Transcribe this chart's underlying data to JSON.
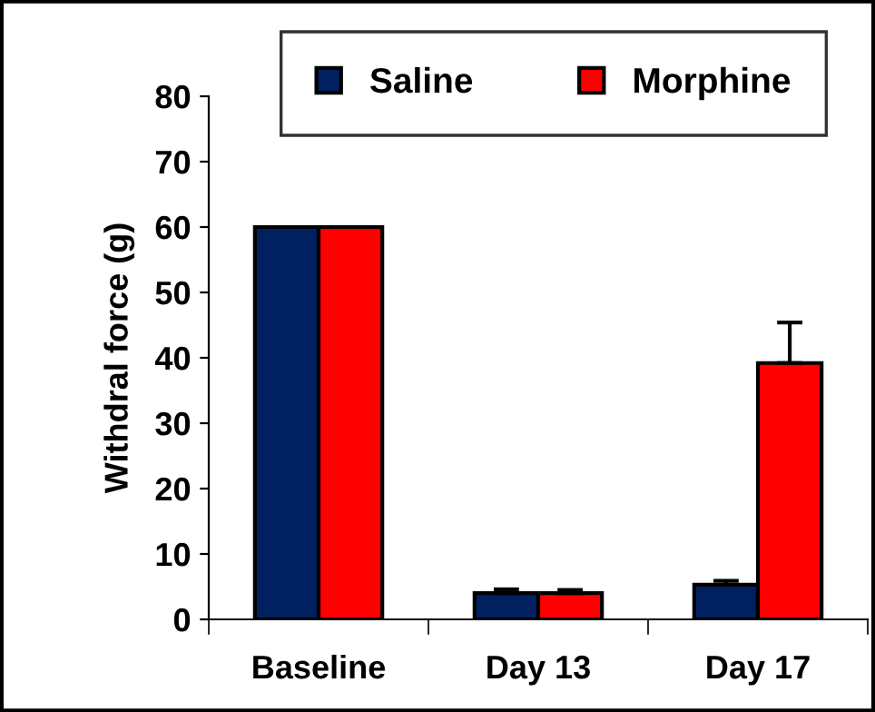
{
  "chart_data": {
    "type": "bar",
    "ylabel": "Withdral force (g)",
    "categories": [
      "Baseline",
      "Day 13",
      "Day 17"
    ],
    "ylim": [
      0,
      80
    ],
    "yticks": [
      0,
      10,
      20,
      30,
      40,
      50,
      60,
      70,
      80
    ],
    "grid": false,
    "legend": "top",
    "series": [
      {
        "name": "Saline",
        "color": "#002060",
        "values": [
          60,
          4,
          5.3
        ],
        "errors": [
          null,
          [
            4,
            4.6
          ],
          [
            5.3,
            5.9
          ]
        ]
      },
      {
        "name": "Morphine",
        "color": "#ff0000",
        "values": [
          60,
          4,
          39.2
        ],
        "errors": [
          null,
          [
            4,
            4.5
          ],
          [
            39.2,
            45.4
          ]
        ]
      }
    ]
  }
}
